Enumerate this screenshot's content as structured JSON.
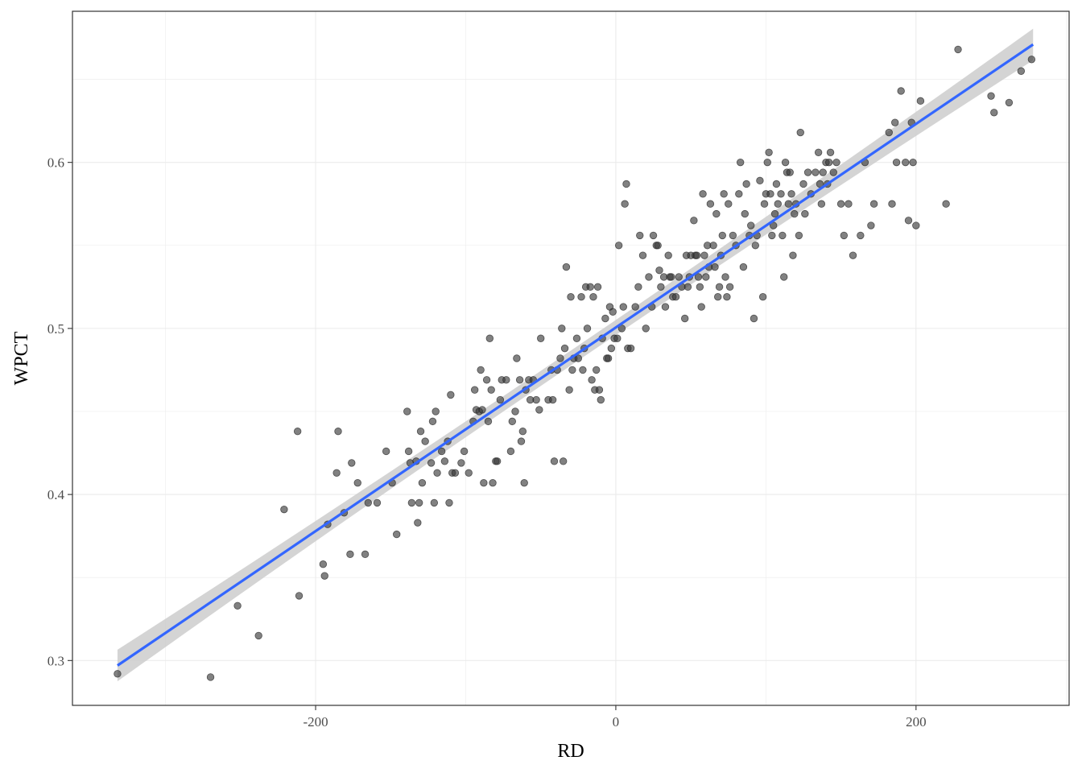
{
  "chart_data": {
    "type": "scatter",
    "xlabel": "RD",
    "ylabel": "WPCT",
    "xlim": [
      -362,
      302
    ],
    "ylim": [
      0.273,
      0.691
    ],
    "x_ticks": [
      -200,
      0,
      200
    ],
    "x_tick_labels": [
      "-200",
      "0",
      "200"
    ],
    "y_ticks": [
      0.3,
      0.4,
      0.5,
      0.6
    ],
    "y_tick_labels": [
      "0.3",
      "0.4",
      "0.5",
      "0.6"
    ],
    "grid": true,
    "legend": "none",
    "colors": {
      "points": "#333333",
      "fit_line": "#3366ff",
      "confidence_band": "#cccccc",
      "grid": "#ebebeb",
      "panel_border": "#333333"
    },
    "fit": {
      "method": "linear",
      "x": [
        -332,
        278
      ],
      "y": [
        0.297,
        0.671
      ],
      "band_halfwidth": [
        0.0095,
        0.0045,
        0.0095
      ]
    },
    "points": [
      [
        -332,
        0.292
      ],
      [
        -270,
        0.29
      ],
      [
        -252,
        0.333
      ],
      [
        -238,
        0.315
      ],
      [
        -221,
        0.391
      ],
      [
        -212,
        0.438
      ],
      [
        -211,
        0.339
      ],
      [
        -195,
        0.358
      ],
      [
        -194,
        0.351
      ],
      [
        -192,
        0.382
      ],
      [
        -186,
        0.413
      ],
      [
        -185,
        0.438
      ],
      [
        -181,
        0.389
      ],
      [
        -177,
        0.364
      ],
      [
        -176,
        0.419
      ],
      [
        -172,
        0.407
      ],
      [
        -167,
        0.364
      ],
      [
        -165,
        0.395
      ],
      [
        -159,
        0.395
      ],
      [
        -153,
        0.426
      ],
      [
        -149,
        0.407
      ],
      [
        -146,
        0.376
      ],
      [
        -139,
        0.45
      ],
      [
        -138,
        0.426
      ],
      [
        -137,
        0.419
      ],
      [
        -136,
        0.395
      ],
      [
        -133,
        0.42
      ],
      [
        -132,
        0.383
      ],
      [
        -131,
        0.395
      ],
      [
        -130,
        0.438
      ],
      [
        -129,
        0.407
      ],
      [
        -127,
        0.432
      ],
      [
        -123,
        0.419
      ],
      [
        -122,
        0.444
      ],
      [
        -121,
        0.395
      ],
      [
        -120,
        0.45
      ],
      [
        -119,
        0.413
      ],
      [
        -116,
        0.426
      ],
      [
        -114,
        0.42
      ],
      [
        -112,
        0.432
      ],
      [
        -111,
        0.395
      ],
      [
        -110,
        0.46
      ],
      [
        -109,
        0.413
      ],
      [
        -107,
        0.413
      ],
      [
        -103,
        0.419
      ],
      [
        -101,
        0.426
      ],
      [
        -98,
        0.413
      ],
      [
        -95,
        0.444
      ],
      [
        -94,
        0.463
      ],
      [
        -93,
        0.451
      ],
      [
        -91,
        0.45
      ],
      [
        -90,
        0.475
      ],
      [
        -89,
        0.451
      ],
      [
        -88,
        0.407
      ],
      [
        -86,
        0.469
      ],
      [
        -85,
        0.444
      ],
      [
        -84,
        0.494
      ],
      [
        -83,
        0.463
      ],
      [
        -82,
        0.407
      ],
      [
        -80,
        0.42
      ],
      [
        -79,
        0.42
      ],
      [
        -77,
        0.457
      ],
      [
        -76,
        0.469
      ],
      [
        -73,
        0.469
      ],
      [
        -70,
        0.426
      ],
      [
        -69,
        0.444
      ],
      [
        -67,
        0.45
      ],
      [
        -66,
        0.482
      ],
      [
        -64,
        0.469
      ],
      [
        -63,
        0.432
      ],
      [
        -62,
        0.438
      ],
      [
        -61,
        0.407
      ],
      [
        -60,
        0.463
      ],
      [
        -58,
        0.469
      ],
      [
        -57,
        0.457
      ],
      [
        -55,
        0.469
      ],
      [
        -53,
        0.457
      ],
      [
        -51,
        0.451
      ],
      [
        -50,
        0.494
      ],
      [
        -45,
        0.457
      ],
      [
        -43,
        0.475
      ],
      [
        -42,
        0.457
      ],
      [
        -41,
        0.42
      ],
      [
        -39,
        0.475
      ],
      [
        -37,
        0.482
      ],
      [
        -36,
        0.5
      ],
      [
        -35,
        0.42
      ],
      [
        -34,
        0.488
      ],
      [
        -33,
        0.537
      ],
      [
        -31,
        0.463
      ],
      [
        -30,
        0.519
      ],
      [
        -29,
        0.475
      ],
      [
        -28,
        0.482
      ],
      [
        -26,
        0.494
      ],
      [
        -25,
        0.482
      ],
      [
        -23,
        0.519
      ],
      [
        -22,
        0.475
      ],
      [
        -21,
        0.488
      ],
      [
        -20,
        0.525
      ],
      [
        -19,
        0.5
      ],
      [
        -17,
        0.525
      ],
      [
        -16,
        0.469
      ],
      [
        -15,
        0.519
      ],
      [
        -14,
        0.463
      ],
      [
        -13,
        0.475
      ],
      [
        -12,
        0.525
      ],
      [
        -11,
        0.463
      ],
      [
        -10,
        0.457
      ],
      [
        -9,
        0.494
      ],
      [
        -7,
        0.506
      ],
      [
        -6,
        0.482
      ],
      [
        -5,
        0.482
      ],
      [
        -4,
        0.513
      ],
      [
        -3,
        0.488
      ],
      [
        -2,
        0.51
      ],
      [
        -1,
        0.494
      ],
      [
        1,
        0.494
      ],
      [
        2,
        0.55
      ],
      [
        4,
        0.5
      ],
      [
        5,
        0.513
      ],
      [
        6,
        0.575
      ],
      [
        7,
        0.587
      ],
      [
        8,
        0.488
      ],
      [
        10,
        0.488
      ],
      [
        13,
        0.513
      ],
      [
        15,
        0.525
      ],
      [
        16,
        0.556
      ],
      [
        18,
        0.544
      ],
      [
        20,
        0.5
      ],
      [
        22,
        0.531
      ],
      [
        24,
        0.513
      ],
      [
        25,
        0.556
      ],
      [
        27,
        0.55
      ],
      [
        28,
        0.55
      ],
      [
        29,
        0.535
      ],
      [
        30,
        0.525
      ],
      [
        32,
        0.531
      ],
      [
        33,
        0.513
      ],
      [
        35,
        0.544
      ],
      [
        36,
        0.531
      ],
      [
        37,
        0.531
      ],
      [
        38,
        0.519
      ],
      [
        40,
        0.519
      ],
      [
        42,
        0.531
      ],
      [
        44,
        0.525
      ],
      [
        46,
        0.506
      ],
      [
        47,
        0.544
      ],
      [
        48,
        0.525
      ],
      [
        49,
        0.531
      ],
      [
        50,
        0.544
      ],
      [
        52,
        0.565
      ],
      [
        53,
        0.544
      ],
      [
        54,
        0.544
      ],
      [
        55,
        0.531
      ],
      [
        56,
        0.525
      ],
      [
        57,
        0.513
      ],
      [
        58,
        0.581
      ],
      [
        59,
        0.544
      ],
      [
        60,
        0.531
      ],
      [
        61,
        0.55
      ],
      [
        62,
        0.537
      ],
      [
        63,
        0.575
      ],
      [
        65,
        0.55
      ],
      [
        66,
        0.537
      ],
      [
        67,
        0.569
      ],
      [
        68,
        0.519
      ],
      [
        69,
        0.525
      ],
      [
        70,
        0.544
      ],
      [
        71,
        0.556
      ],
      [
        72,
        0.581
      ],
      [
        73,
        0.531
      ],
      [
        74,
        0.519
      ],
      [
        75,
        0.575
      ],
      [
        76,
        0.525
      ],
      [
        78,
        0.556
      ],
      [
        80,
        0.55
      ],
      [
        82,
        0.581
      ],
      [
        83,
        0.6
      ],
      [
        85,
        0.537
      ],
      [
        86,
        0.569
      ],
      [
        87,
        0.587
      ],
      [
        89,
        0.556
      ],
      [
        90,
        0.562
      ],
      [
        92,
        0.506
      ],
      [
        93,
        0.55
      ],
      [
        94,
        0.556
      ],
      [
        96,
        0.589
      ],
      [
        98,
        0.519
      ],
      [
        99,
        0.575
      ],
      [
        100,
        0.581
      ],
      [
        101,
        0.6
      ],
      [
        102,
        0.606
      ],
      [
        103,
        0.581
      ],
      [
        104,
        0.556
      ],
      [
        105,
        0.562
      ],
      [
        106,
        0.569
      ],
      [
        107,
        0.587
      ],
      [
        108,
        0.575
      ],
      [
        110,
        0.581
      ],
      [
        111,
        0.556
      ],
      [
        112,
        0.531
      ],
      [
        113,
        0.6
      ],
      [
        114,
        0.594
      ],
      [
        115,
        0.575
      ],
      [
        116,
        0.594
      ],
      [
        117,
        0.581
      ],
      [
        118,
        0.544
      ],
      [
        119,
        0.569
      ],
      [
        120,
        0.575
      ],
      [
        122,
        0.556
      ],
      [
        123,
        0.618
      ],
      [
        125,
        0.587
      ],
      [
        126,
        0.569
      ],
      [
        128,
        0.594
      ],
      [
        130,
        0.581
      ],
      [
        133,
        0.594
      ],
      [
        135,
        0.606
      ],
      [
        136,
        0.587
      ],
      [
        137,
        0.575
      ],
      [
        138,
        0.594
      ],
      [
        140,
        0.6
      ],
      [
        141,
        0.587
      ],
      [
        142,
        0.6
      ],
      [
        143,
        0.606
      ],
      [
        145,
        0.594
      ],
      [
        147,
        0.6
      ],
      [
        150,
        0.575
      ],
      [
        152,
        0.556
      ],
      [
        155,
        0.575
      ],
      [
        158,
        0.544
      ],
      [
        163,
        0.556
      ],
      [
        166,
        0.6
      ],
      [
        170,
        0.562
      ],
      [
        172,
        0.575
      ],
      [
        182,
        0.618
      ],
      [
        184,
        0.575
      ],
      [
        186,
        0.624
      ],
      [
        187,
        0.6
      ],
      [
        190,
        0.643
      ],
      [
        193,
        0.6
      ],
      [
        195,
        0.565
      ],
      [
        197,
        0.624
      ],
      [
        198,
        0.6
      ],
      [
        200,
        0.562
      ],
      [
        203,
        0.637
      ],
      [
        220,
        0.575
      ],
      [
        228,
        0.668
      ],
      [
        250,
        0.64
      ],
      [
        252,
        0.63
      ],
      [
        262,
        0.636
      ],
      [
        270,
        0.655
      ],
      [
        277,
        0.662
      ]
    ]
  }
}
